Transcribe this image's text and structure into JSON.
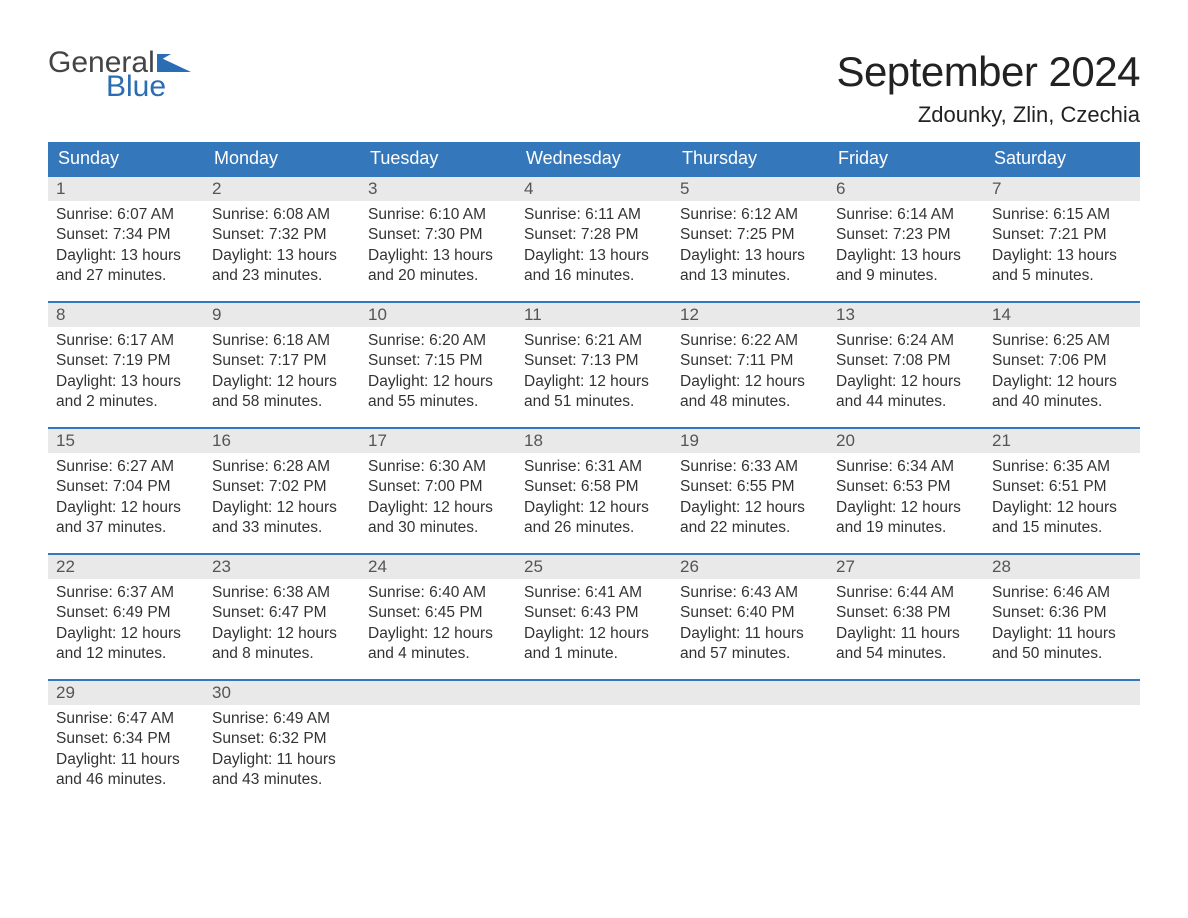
{
  "logo": {
    "text1": "General",
    "text2": "Blue",
    "shape_color": "#2a6db3"
  },
  "title": "September 2024",
  "location": "Zdounky, Zlin, Czechia",
  "colors": {
    "header_bg": "#3478bb",
    "header_text": "#ffffff",
    "daynum_bg": "#e9e9e9",
    "row_border": "#3478bb",
    "body_text": "#333333",
    "background": "#ffffff"
  },
  "layout": {
    "columns": 7,
    "rows": 5
  },
  "headers": [
    "Sunday",
    "Monday",
    "Tuesday",
    "Wednesday",
    "Thursday",
    "Friday",
    "Saturday"
  ],
  "weeks": [
    [
      {
        "n": "1",
        "sunrise": "6:07 AM",
        "sunset": "7:34 PM",
        "d1": "Daylight: 13 hours",
        "d2": "and 27 minutes."
      },
      {
        "n": "2",
        "sunrise": "6:08 AM",
        "sunset": "7:32 PM",
        "d1": "Daylight: 13 hours",
        "d2": "and 23 minutes."
      },
      {
        "n": "3",
        "sunrise": "6:10 AM",
        "sunset": "7:30 PM",
        "d1": "Daylight: 13 hours",
        "d2": "and 20 minutes."
      },
      {
        "n": "4",
        "sunrise": "6:11 AM",
        "sunset": "7:28 PM",
        "d1": "Daylight: 13 hours",
        "d2": "and 16 minutes."
      },
      {
        "n": "5",
        "sunrise": "6:12 AM",
        "sunset": "7:25 PM",
        "d1": "Daylight: 13 hours",
        "d2": "and 13 minutes."
      },
      {
        "n": "6",
        "sunrise": "6:14 AM",
        "sunset": "7:23 PM",
        "d1": "Daylight: 13 hours",
        "d2": "and 9 minutes."
      },
      {
        "n": "7",
        "sunrise": "6:15 AM",
        "sunset": "7:21 PM",
        "d1": "Daylight: 13 hours",
        "d2": "and 5 minutes."
      }
    ],
    [
      {
        "n": "8",
        "sunrise": "6:17 AM",
        "sunset": "7:19 PM",
        "d1": "Daylight: 13 hours",
        "d2": "and 2 minutes."
      },
      {
        "n": "9",
        "sunrise": "6:18 AM",
        "sunset": "7:17 PM",
        "d1": "Daylight: 12 hours",
        "d2": "and 58 minutes."
      },
      {
        "n": "10",
        "sunrise": "6:20 AM",
        "sunset": "7:15 PM",
        "d1": "Daylight: 12 hours",
        "d2": "and 55 minutes."
      },
      {
        "n": "11",
        "sunrise": "6:21 AM",
        "sunset": "7:13 PM",
        "d1": "Daylight: 12 hours",
        "d2": "and 51 minutes."
      },
      {
        "n": "12",
        "sunrise": "6:22 AM",
        "sunset": "7:11 PM",
        "d1": "Daylight: 12 hours",
        "d2": "and 48 minutes."
      },
      {
        "n": "13",
        "sunrise": "6:24 AM",
        "sunset": "7:08 PM",
        "d1": "Daylight: 12 hours",
        "d2": "and 44 minutes."
      },
      {
        "n": "14",
        "sunrise": "6:25 AM",
        "sunset": "7:06 PM",
        "d1": "Daylight: 12 hours",
        "d2": "and 40 minutes."
      }
    ],
    [
      {
        "n": "15",
        "sunrise": "6:27 AM",
        "sunset": "7:04 PM",
        "d1": "Daylight: 12 hours",
        "d2": "and 37 minutes."
      },
      {
        "n": "16",
        "sunrise": "6:28 AM",
        "sunset": "7:02 PM",
        "d1": "Daylight: 12 hours",
        "d2": "and 33 minutes."
      },
      {
        "n": "17",
        "sunrise": "6:30 AM",
        "sunset": "7:00 PM",
        "d1": "Daylight: 12 hours",
        "d2": "and 30 minutes."
      },
      {
        "n": "18",
        "sunrise": "6:31 AM",
        "sunset": "6:58 PM",
        "d1": "Daylight: 12 hours",
        "d2": "and 26 minutes."
      },
      {
        "n": "19",
        "sunrise": "6:33 AM",
        "sunset": "6:55 PM",
        "d1": "Daylight: 12 hours",
        "d2": "and 22 minutes."
      },
      {
        "n": "20",
        "sunrise": "6:34 AM",
        "sunset": "6:53 PM",
        "d1": "Daylight: 12 hours",
        "d2": "and 19 minutes."
      },
      {
        "n": "21",
        "sunrise": "6:35 AM",
        "sunset": "6:51 PM",
        "d1": "Daylight: 12 hours",
        "d2": "and 15 minutes."
      }
    ],
    [
      {
        "n": "22",
        "sunrise": "6:37 AM",
        "sunset": "6:49 PM",
        "d1": "Daylight: 12 hours",
        "d2": "and 12 minutes."
      },
      {
        "n": "23",
        "sunrise": "6:38 AM",
        "sunset": "6:47 PM",
        "d1": "Daylight: 12 hours",
        "d2": "and 8 minutes."
      },
      {
        "n": "24",
        "sunrise": "6:40 AM",
        "sunset": "6:45 PM",
        "d1": "Daylight: 12 hours",
        "d2": "and 4 minutes."
      },
      {
        "n": "25",
        "sunrise": "6:41 AM",
        "sunset": "6:43 PM",
        "d1": "Daylight: 12 hours",
        "d2": "and 1 minute."
      },
      {
        "n": "26",
        "sunrise": "6:43 AM",
        "sunset": "6:40 PM",
        "d1": "Daylight: 11 hours",
        "d2": "and 57 minutes."
      },
      {
        "n": "27",
        "sunrise": "6:44 AM",
        "sunset": "6:38 PM",
        "d1": "Daylight: 11 hours",
        "d2": "and 54 minutes."
      },
      {
        "n": "28",
        "sunrise": "6:46 AM",
        "sunset": "6:36 PM",
        "d1": "Daylight: 11 hours",
        "d2": "and 50 minutes."
      }
    ],
    [
      {
        "n": "29",
        "sunrise": "6:47 AM",
        "sunset": "6:34 PM",
        "d1": "Daylight: 11 hours",
        "d2": "and 46 minutes."
      },
      {
        "n": "30",
        "sunrise": "6:49 AM",
        "sunset": "6:32 PM",
        "d1": "Daylight: 11 hours",
        "d2": "and 43 minutes."
      },
      {
        "empty": true
      },
      {
        "empty": true
      },
      {
        "empty": true
      },
      {
        "empty": true
      },
      {
        "empty": true
      }
    ]
  ],
  "labels": {
    "sunrise_prefix": "Sunrise: ",
    "sunset_prefix": "Sunset: "
  }
}
